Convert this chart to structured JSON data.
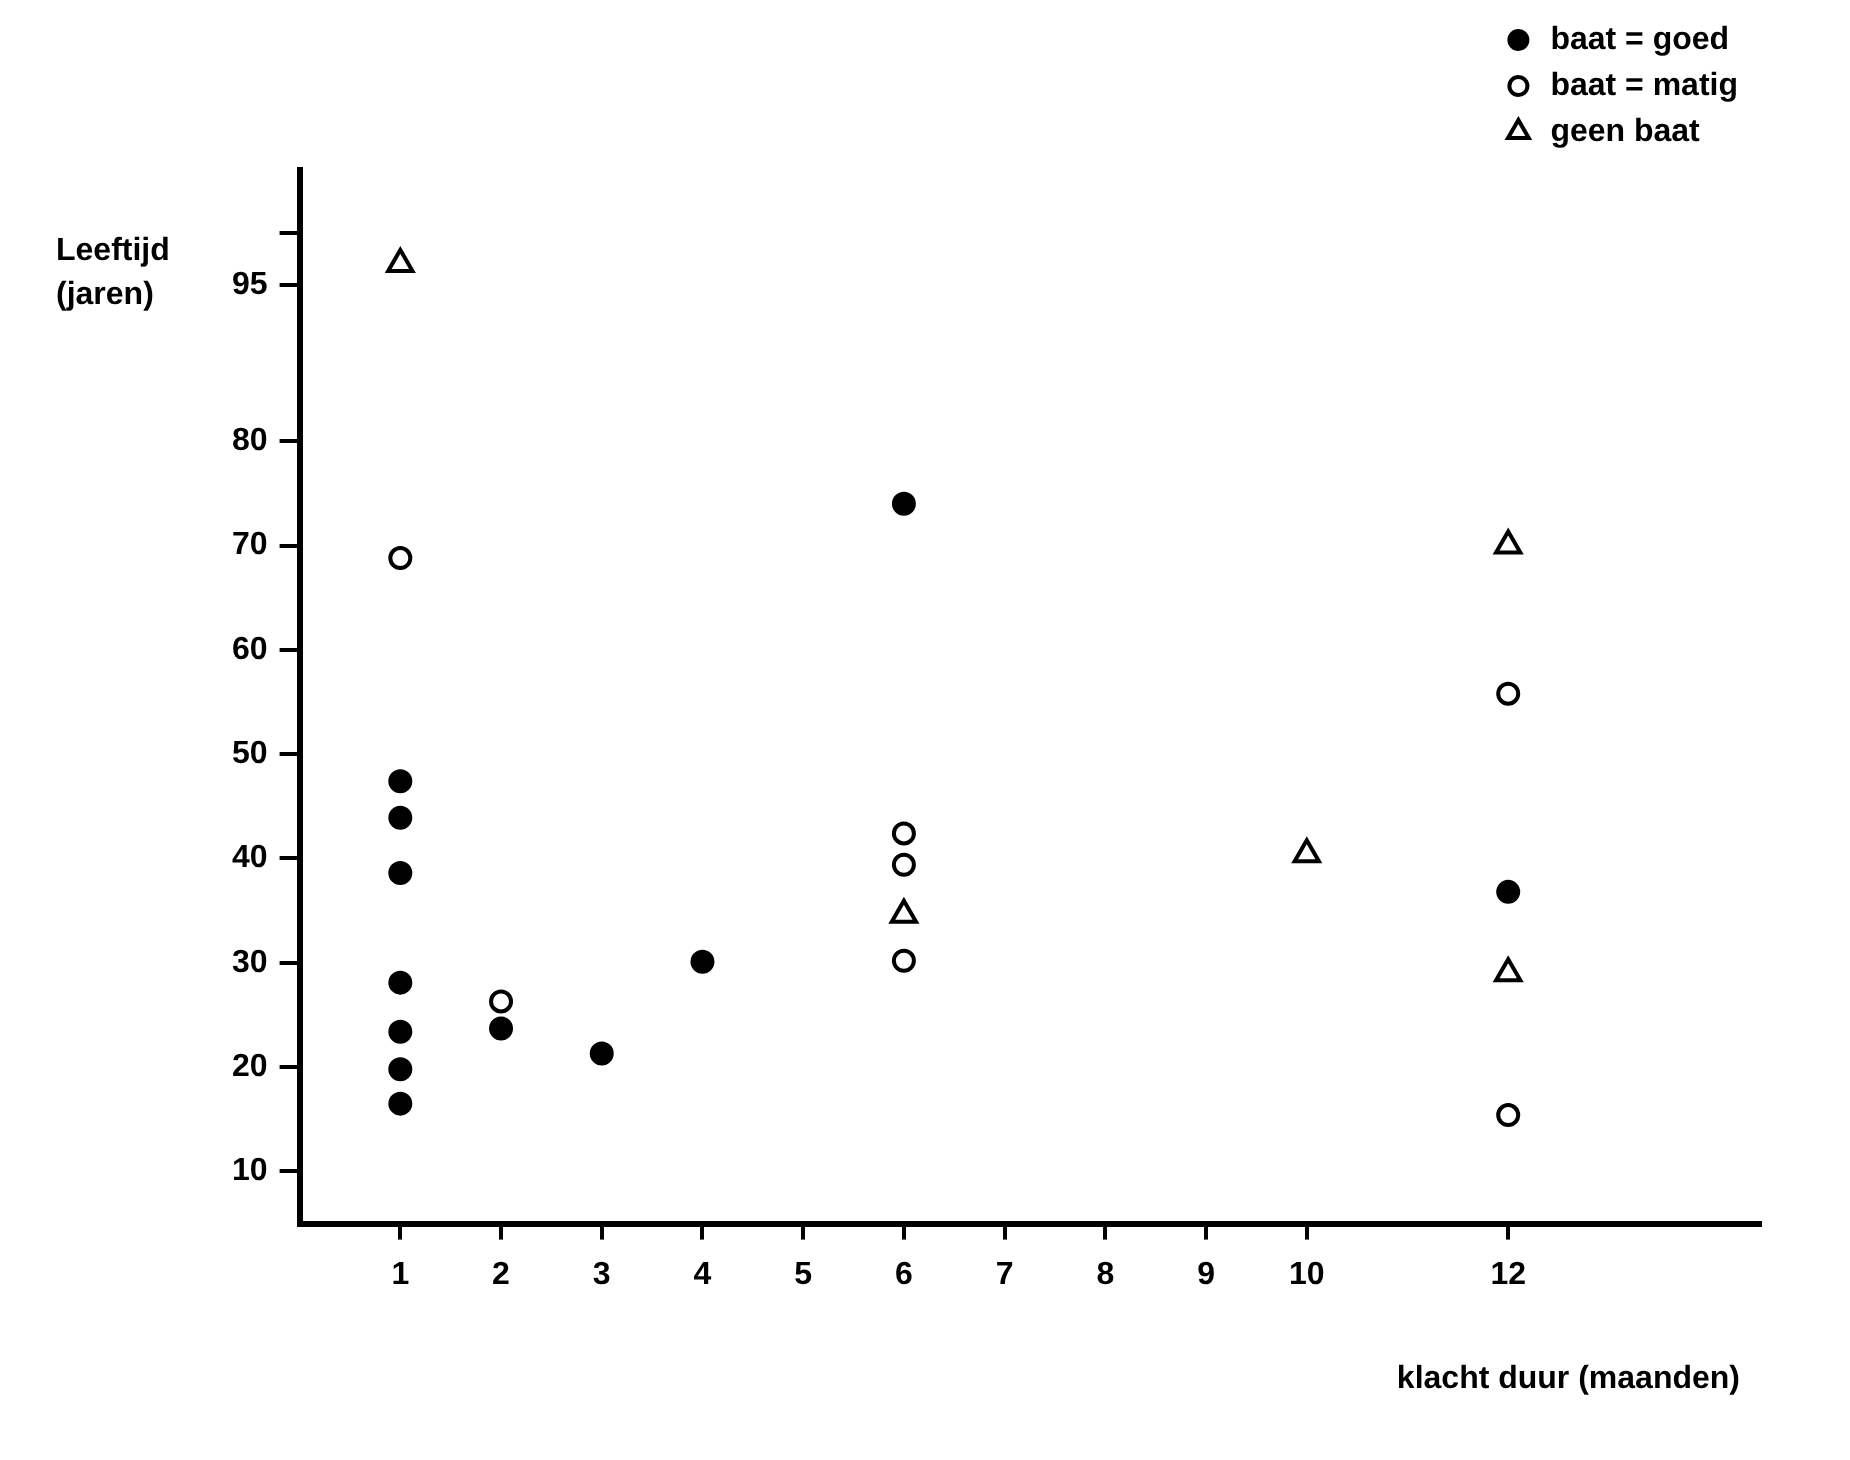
{
  "chart_data": {
    "type": "scatter",
    "xlabel": "klacht duur (maanden)",
    "ylabel": "Leeftijd (jaren)",
    "xlim": [
      0,
      14.5
    ],
    "xticks": [
      1,
      2,
      3,
      4,
      5,
      6,
      7,
      8,
      9,
      10,
      12
    ],
    "ylim": [
      5,
      106
    ],
    "yticks": [
      10,
      20,
      30,
      40,
      50,
      60,
      70,
      80,
      95,
      {
        "value": 100,
        "label": null
      }
    ],
    "grid": false,
    "legend": "top right",
    "series": [
      {
        "name": "baat = goed",
        "color": "#000000",
        "marker": "circle",
        "x": [
          1,
          1,
          1,
          1,
          1,
          1,
          1,
          2,
          3,
          4,
          6,
          12
        ],
        "values": [
          47.4,
          43.9,
          38.6,
          28.1,
          23.4,
          19.8,
          16.5,
          23.7,
          21.3,
          30.1,
          74,
          36.8
        ]
      },
      {
        "name": "baat = matig",
        "color": "#ffffff",
        "marker": "circle",
        "x": [
          1,
          2,
          6,
          6,
          6,
          12,
          12
        ],
        "values": [
          68.8,
          26.3,
          42.4,
          39.4,
          30.2,
          55.8,
          15.4
        ]
      },
      {
        "name": "geen baat",
        "color": "#ffffff",
        "marker": "triangle",
        "x": [
          1,
          6,
          10,
          12,
          12
        ],
        "values": [
          97,
          34.6,
          40.4,
          70,
          29
        ]
      }
    ]
  }
}
